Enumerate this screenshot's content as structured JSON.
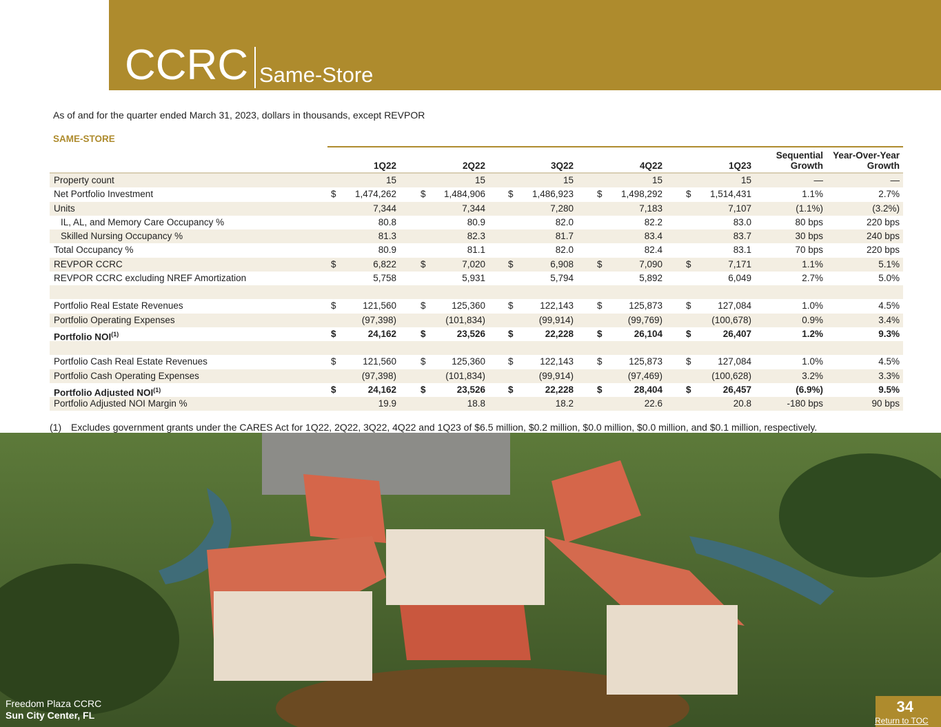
{
  "header": {
    "title": "CCRC",
    "subtitle": "Same-Store"
  },
  "note": "As of and for the quarter ended March 31, 2023, dollars in thousands, except REVPOR",
  "section_label": "SAME-STORE",
  "table": {
    "currency_symbol": "$",
    "columns": [
      "1Q22",
      "2Q22",
      "3Q22",
      "4Q22",
      "1Q23",
      "Sequential Growth",
      "Year-Over-Year Growth"
    ],
    "sections": [
      [
        {
          "label": "Property count",
          "values": [
            "15",
            "15",
            "15",
            "15",
            "15",
            "—",
            "—"
          ]
        },
        {
          "label": "Net Portfolio Investment",
          "currency": true,
          "values": [
            "1,474,262",
            "1,484,906",
            "1,486,923",
            "1,498,292",
            "1,514,431",
            "1.1%",
            "2.7%"
          ]
        },
        {
          "label": "Units",
          "values": [
            "7,344",
            "7,344",
            "7,280",
            "7,183",
            "7,107",
            "(1.1%)",
            "(3.2%)"
          ]
        },
        {
          "label": "IL, AL, and Memory Care Occupancy %",
          "indent": true,
          "values": [
            "80.8",
            "80.9",
            "82.0",
            "82.2",
            "83.0",
            "80 bps",
            "220 bps"
          ]
        },
        {
          "label": "Skilled Nursing Occupancy %",
          "indent": true,
          "values": [
            "81.3",
            "82.3",
            "81.7",
            "83.4",
            "83.7",
            "30 bps",
            "240 bps"
          ]
        },
        {
          "label": "Total Occupancy %",
          "values": [
            "80.9",
            "81.1",
            "82.0",
            "82.4",
            "83.1",
            "70 bps",
            "220 bps"
          ]
        },
        {
          "label": "REVPOR CCRC",
          "currency": true,
          "values": [
            "6,822",
            "7,020",
            "6,908",
            "7,090",
            "7,171",
            "1.1%",
            "5.1%"
          ]
        },
        {
          "label": "REVPOR CCRC excluding NREF Amortization",
          "values": [
            "5,758",
            "5,931",
            "5,794",
            "5,892",
            "6,049",
            "2.7%",
            "5.0%"
          ]
        }
      ],
      [
        {
          "label": "Portfolio Real Estate Revenues",
          "currency": true,
          "values": [
            "121,560",
            "125,360",
            "122,143",
            "125,873",
            "127,084",
            "1.0%",
            "4.5%"
          ]
        },
        {
          "label": "Portfolio Operating Expenses",
          "values": [
            "(97,398)",
            "(101,834)",
            "(99,914)",
            "(99,769)",
            "(100,678)",
            "0.9%",
            "3.4%"
          ]
        },
        {
          "label": "Portfolio NOI",
          "note_ref": "(1)",
          "bold": true,
          "currency": true,
          "values": [
            "24,162",
            "23,526",
            "22,228",
            "26,104",
            "26,407",
            "1.2%",
            "9.3%"
          ]
        }
      ],
      [
        {
          "label": "Portfolio Cash Real Estate Revenues",
          "currency": true,
          "values": [
            "121,560",
            "125,360",
            "122,143",
            "125,873",
            "127,084",
            "1.0%",
            "4.5%"
          ]
        },
        {
          "label": "Portfolio Cash Operating Expenses",
          "values": [
            "(97,398)",
            "(101,834)",
            "(99,914)",
            "(97,469)",
            "(100,628)",
            "3.2%",
            "3.3%"
          ]
        },
        {
          "label": "Portfolio Adjusted NOI",
          "note_ref": "(1)",
          "bold": true,
          "currency": true,
          "values": [
            "24,162",
            "23,526",
            "22,228",
            "28,404",
            "26,457",
            "(6.9%)",
            "9.5%"
          ]
        },
        {
          "label": "Portfolio Adjusted NOI Margin %",
          "values": [
            "19.9",
            "18.8",
            "18.2",
            "22.6",
            "20.8",
            "-180 bps",
            "90 bps"
          ]
        }
      ]
    ]
  },
  "footnote": {
    "marker": "(1)",
    "text": "Excludes government grants under the CARES Act for 1Q22, 2Q22, 3Q22, 4Q22 and 1Q23 of $6.5 million, $0.2 million, $0.0 million, $0.0 million, and $0.1 million, respectively."
  },
  "photo_caption": {
    "name": "Freedom Plaza CCRC",
    "location": "Sun City Center, FL"
  },
  "page_number": "34",
  "return_link": "Return to TOC"
}
